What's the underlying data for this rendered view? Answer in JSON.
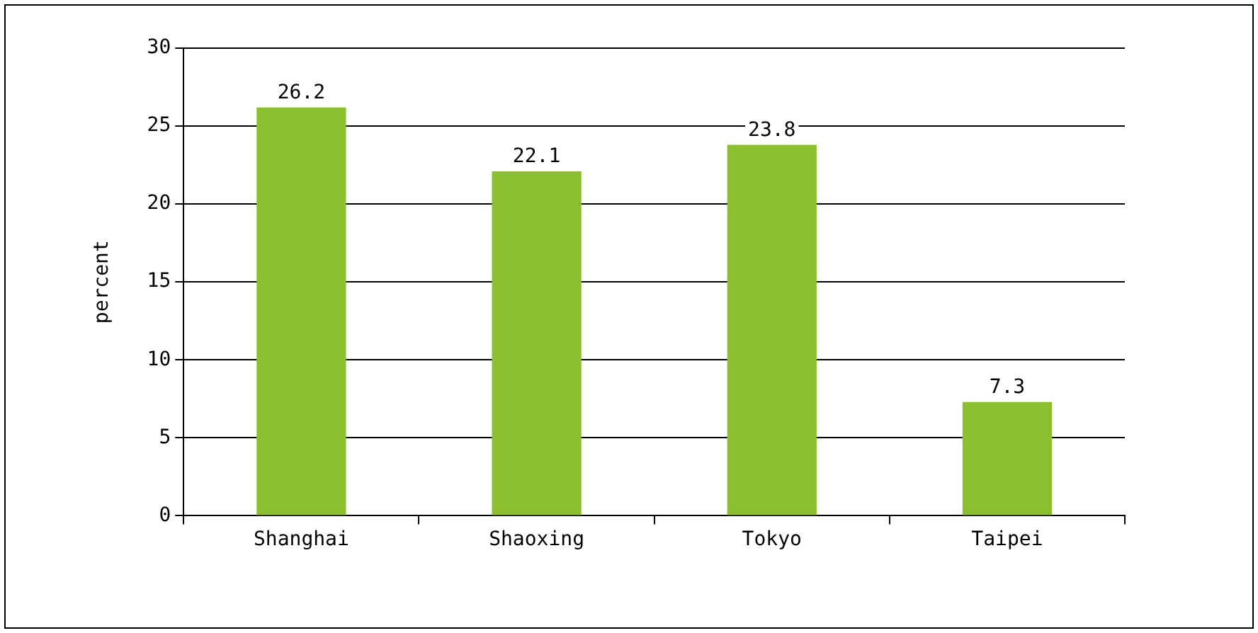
{
  "chart_data": {
    "type": "bar",
    "ylabel": "percent",
    "categories": [
      "Shanghai",
      "Shaoxing",
      "Tokyo",
      "Taipei"
    ],
    "values": [
      26.2,
      22.1,
      23.8,
      7.3
    ],
    "color": "#8cbf2f",
    "ylim": [
      0,
      30
    ],
    "yticks": [
      0,
      5,
      10,
      15,
      20,
      25,
      30
    ],
    "grid": "y",
    "data_labels": true,
    "legend": false
  }
}
